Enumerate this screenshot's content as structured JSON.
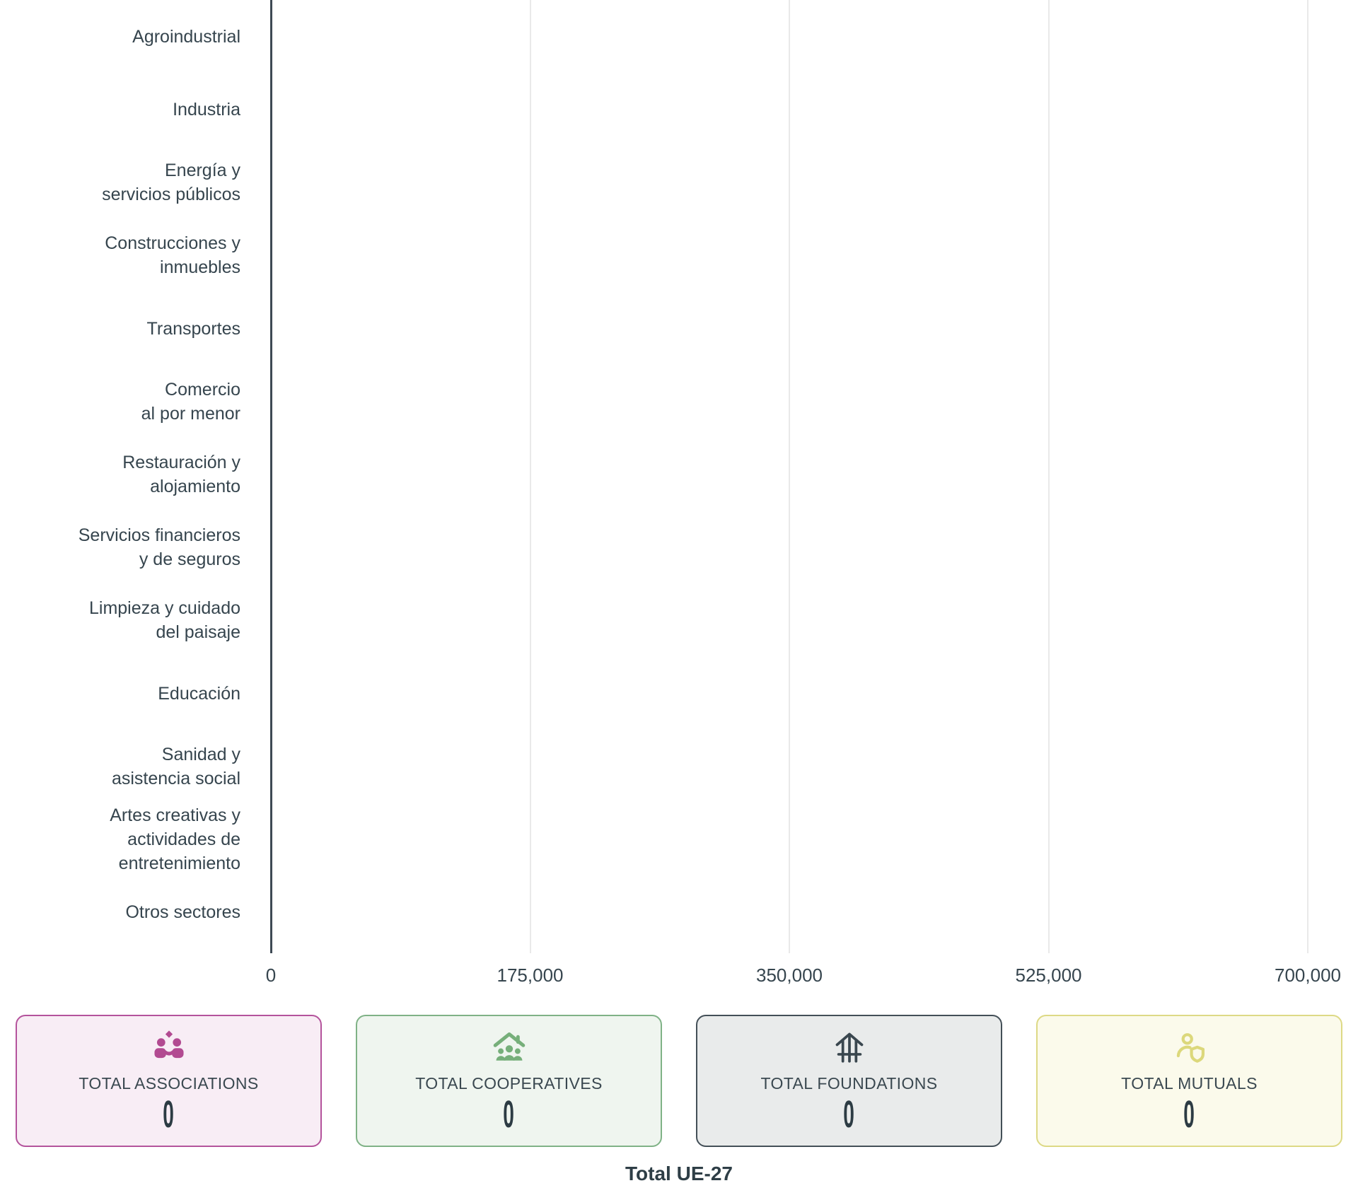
{
  "chart_data": {
    "type": "bar",
    "orientation": "horizontal",
    "title": "",
    "xlabel": "",
    "ylabel": "",
    "categories": [
      [
        "Agroindustrial"
      ],
      [
        "Industria"
      ],
      [
        "Energía y",
        "servicios públicos"
      ],
      [
        "Construcciones y",
        "inmuebles"
      ],
      [
        "Transportes"
      ],
      [
        "Comercio",
        "al por menor"
      ],
      [
        "Restauración y",
        "alojamiento"
      ],
      [
        "Servicios financieros",
        "y de seguros"
      ],
      [
        "Limpieza y cuidado",
        "del paisaje"
      ],
      [
        "Educación"
      ],
      [
        "Sanidad y",
        "asistencia social"
      ],
      [
        "Artes creativas y",
        "actividades de",
        "entretenimiento"
      ],
      [
        "Otros sectores"
      ]
    ],
    "values": [
      0,
      0,
      0,
      0,
      0,
      0,
      0,
      0,
      0,
      0,
      0,
      0,
      0
    ],
    "xlim": [
      0,
      700000
    ],
    "xticks": [
      0,
      175000,
      350000,
      525000,
      700000
    ],
    "xtick_labels": [
      "0",
      "175,000",
      "350,000",
      "525,000",
      "700,000"
    ],
    "grid": "vertical-gridlines-on",
    "legend": "none"
  },
  "cards": [
    {
      "label": "TOTAL ASSOCIATIONS",
      "value": "0",
      "icon": "people-association-icon",
      "accent": "#b24a91",
      "background": "#f8edf5"
    },
    {
      "label": "TOTAL COOPERATIVES",
      "value": "0",
      "icon": "cooperative-house-icon",
      "accent": "#76af7a",
      "background": "#eff5ef"
    },
    {
      "label": "TOTAL FOUNDATIONS",
      "value": "0",
      "icon": "foundation-building-icon",
      "accent": "#3a474f",
      "background": "#e9ebeb"
    },
    {
      "label": "TOTAL MUTUALS",
      "value": "0",
      "icon": "person-shield-icon",
      "accent": "#dcd87b",
      "background": "#fbfaeb"
    }
  ],
  "footer": {
    "caption": "Total UE-27"
  },
  "colors": {
    "axis": "#3e4a54",
    "gridline": "#e9e9e9",
    "text": "#36454e",
    "value_text": "#2c3b43"
  }
}
